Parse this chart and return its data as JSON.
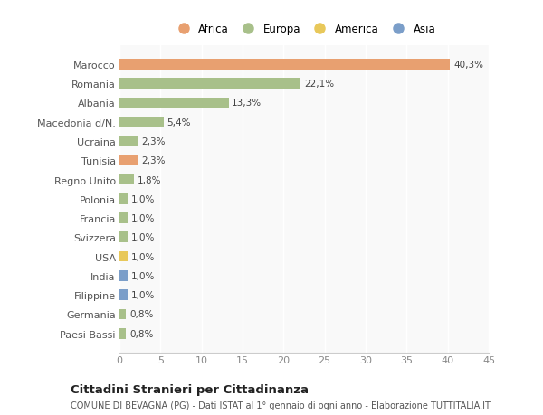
{
  "categories": [
    "Paesi Bassi",
    "Germania",
    "Filippine",
    "India",
    "USA",
    "Svizzera",
    "Francia",
    "Polonia",
    "Regno Unito",
    "Tunisia",
    "Ucraina",
    "Macedonia d/N.",
    "Albania",
    "Romania",
    "Marocco"
  ],
  "values": [
    0.8,
    0.8,
    1.0,
    1.0,
    1.0,
    1.0,
    1.0,
    1.0,
    1.8,
    2.3,
    2.3,
    5.4,
    13.3,
    22.1,
    40.3
  ],
  "colors": [
    "#a8c08a",
    "#a8c08a",
    "#7b9ec9",
    "#7b9ec9",
    "#e8c85a",
    "#a8c08a",
    "#a8c08a",
    "#a8c08a",
    "#a8c08a",
    "#e8a070",
    "#a8c08a",
    "#a8c08a",
    "#a8c08a",
    "#a8c08a",
    "#e8a070"
  ],
  "labels": [
    "0,8%",
    "0,8%",
    "1,0%",
    "1,0%",
    "1,0%",
    "1,0%",
    "1,0%",
    "1,0%",
    "1,8%",
    "2,3%",
    "2,3%",
    "5,4%",
    "13,3%",
    "22,1%",
    "40,3%"
  ],
  "legend": [
    {
      "label": "Africa",
      "color": "#e8a070"
    },
    {
      "label": "Europa",
      "color": "#a8c08a"
    },
    {
      "label": "America",
      "color": "#e8c85a"
    },
    {
      "label": "Asia",
      "color": "#7b9ec9"
    }
  ],
  "title": "Cittadini Stranieri per Cittadinanza",
  "subtitle": "COMUNE DI BEVAGNA (PG) - Dati ISTAT al 1° gennaio di ogni anno - Elaborazione TUTTITALIA.IT",
  "xlim": [
    0,
    45
  ],
  "xticks": [
    0,
    5,
    10,
    15,
    20,
    25,
    30,
    35,
    40,
    45
  ],
  "background_color": "#ffffff",
  "plot_bg_color": "#f9f9f9",
  "bar_height": 0.55,
  "label_fontsize": 7.5,
  "tick_fontsize": 8
}
